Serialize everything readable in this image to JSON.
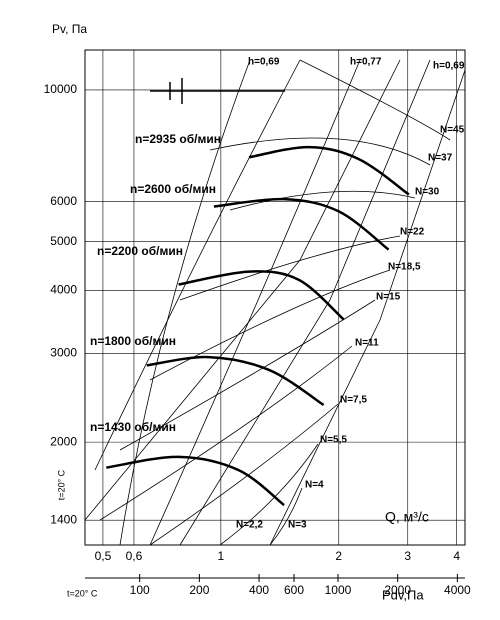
{
  "chart_data": {
    "type": "line",
    "y_label": "Pv, Па",
    "x_label": "Q, м³/с",
    "temp_label_y": "t=20° C",
    "temp_label_x2": "t=20° C",
    "x2_label": "Pdv,Па",
    "log_x": true,
    "log_y": true,
    "grid": true,
    "xlim": [
      0.45,
      4.2
    ],
    "xticks": [
      {
        "value": 0.5,
        "label": "0,5"
      },
      {
        "value": 0.6,
        "label": "0,6"
      },
      1,
      2,
      3,
      4
    ],
    "ylim": [
      1250,
      12000
    ],
    "yticks": [
      1400,
      2000,
      3000,
      4000,
      5000,
      6000,
      10000
    ],
    "x2lim": [
      53,
      4370
    ],
    "x2ticks": [
      100,
      200,
      400,
      600,
      1000,
      2000,
      4000
    ],
    "series": [
      {
        "name": "n=2935 об/мин",
        "color": "#000000",
        "x": [
          1.18,
          1.68,
          2.25,
          3.02
        ],
        "values": [
          7350,
          7700,
          7290,
          6200
        ]
      },
      {
        "name": "n=2600 об/мин",
        "color": "#000000",
        "x": [
          0.96,
          1.45,
          2.0,
          2.68
        ],
        "values": [
          5870,
          6070,
          5740,
          4820
        ]
      },
      {
        "name": "n=2200 об/мин",
        "color": "#000000",
        "x": [
          0.78,
          1.18,
          1.58,
          2.06
        ],
        "values": [
          4110,
          4360,
          4200,
          3500
        ]
      },
      {
        "name": "n=1800 об/мин",
        "color": "#000000",
        "x": [
          0.647,
          0.93,
          1.33,
          1.83
        ],
        "values": [
          2840,
          2950,
          2780,
          2370
        ]
      },
      {
        "name": "n=1430 об/мин",
        "color": "#000000",
        "x": [
          0.51,
          0.78,
          1.11,
          1.45
        ],
        "values": [
          1780,
          1870,
          1760,
          1500
        ]
      }
    ],
    "power_labels": [
      "N=45",
      "N=37",
      "N=30",
      "N=22",
      "N=18,5",
      "N=15",
      "N=11",
      "N=7,5",
      "N=5,5",
      "N=4",
      "N=3",
      "N=2,2"
    ],
    "efficiency_labels": [
      "h=0,69",
      "h=0,77",
      "h=0,69"
    ]
  }
}
